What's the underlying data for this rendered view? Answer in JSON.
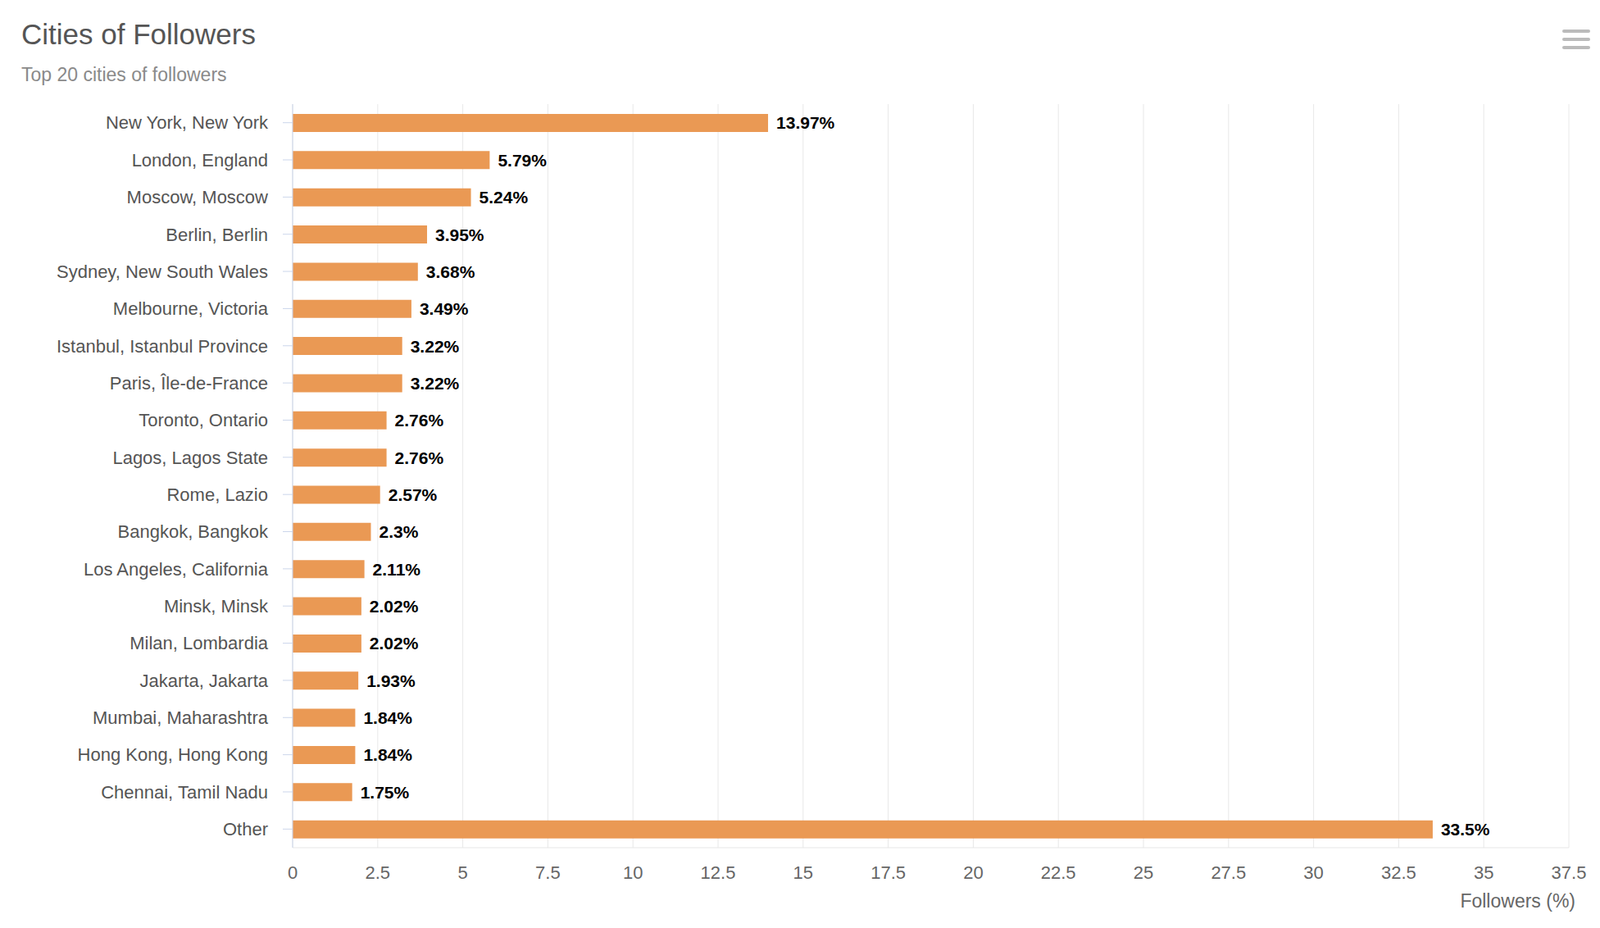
{
  "chart_data": {
    "type": "bar",
    "title": "Cities of Followers",
    "subtitle": "Top 20 cities of followers",
    "orientation": "horizontal",
    "categories": [
      "New York, New York",
      "London, England",
      "Moscow, Moscow",
      "Berlin, Berlin",
      "Sydney, New South Wales",
      "Melbourne, Victoria",
      "Istanbul, Istanbul Province",
      "Paris, Île-de-France",
      "Toronto, Ontario",
      "Lagos, Lagos State",
      "Rome, Lazio",
      "Bangkok, Bangkok",
      "Los Angeles, California",
      "Minsk, Minsk",
      "Milan, Lombardia",
      "Jakarta, Jakarta",
      "Mumbai, Maharashtra",
      "Hong Kong, Hong Kong",
      "Chennai, Tamil Nadu",
      "Other"
    ],
    "values": [
      13.97,
      5.79,
      5.24,
      3.95,
      3.68,
      3.49,
      3.22,
      3.22,
      2.76,
      2.76,
      2.57,
      2.3,
      2.11,
      2.02,
      2.02,
      1.93,
      1.84,
      1.84,
      1.75,
      33.5
    ],
    "value_labels": [
      "13.97%",
      "5.79%",
      "5.24%",
      "3.95%",
      "3.68%",
      "3.49%",
      "3.22%",
      "3.22%",
      "2.76%",
      "2.76%",
      "2.57%",
      "2.3%",
      "2.11%",
      "2.02%",
      "2.02%",
      "1.93%",
      "1.84%",
      "1.84%",
      "1.75%",
      "33.5%"
    ],
    "color": "#ea9954",
    "xlabel": "Followers (%)",
    "xlim": [
      0,
      37.5
    ],
    "xticks": [
      0,
      2.5,
      5,
      7.5,
      10,
      12.5,
      15,
      17.5,
      20,
      22.5,
      25,
      27.5,
      30,
      32.5,
      35,
      37.5
    ],
    "grid": true,
    "data_labels": true
  }
}
